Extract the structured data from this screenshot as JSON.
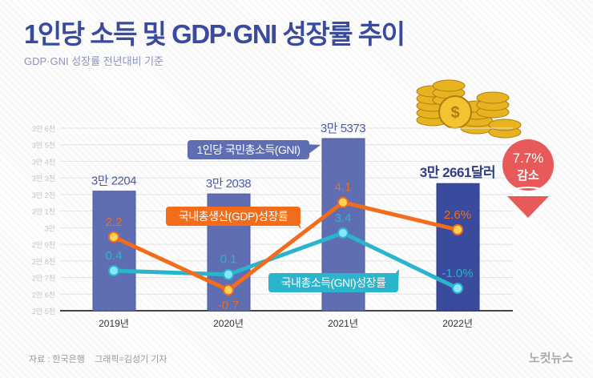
{
  "title": "1인당 소득 및 GDP·GNI 성장률 추이",
  "subtitle": "GDP·GNI 성장률 전년대비 기준",
  "source": "자료 : 한국은행    그래픽=김성기 기자",
  "logo_text": "노컷뉴스",
  "badge": {
    "line1": "7.7%",
    "line2": "감소",
    "color": "#e85a5a"
  },
  "colors": {
    "bar": "#5f6db3",
    "bar_highlight": "#3a4a9c",
    "gdp": "#f26c1c",
    "gni": "#2bb5cc",
    "gdp_point": "#fcd45a",
    "gni_point": "#85e8f8"
  },
  "chart_data": {
    "type": "bar+line",
    "categories": [
      "2019년",
      "2020년",
      "2021년",
      "2022년"
    ],
    "y_ticks": [
      "2만 5천",
      "2만 6천",
      "2만 7천",
      "2만 8천",
      "2만 9천",
      "3만",
      "3만 1천",
      "3만 2천",
      "3만 3천",
      "3만 4천",
      "3만 5천",
      "3만 6천"
    ],
    "ylim": [
      25000,
      36000
    ],
    "grid": true,
    "bars": {
      "name": "1인당 국민총소득(GNI)",
      "values": [
        32204,
        32038,
        35373,
        32661
      ],
      "labels": [
        "3만 2204",
        "3만 2038",
        "3만 5373",
        "3만 2661달러"
      ]
    },
    "series": [
      {
        "name": "국내총생산(GDP)성장률",
        "values": [
          2.2,
          -0.7,
          4.1,
          2.6
        ],
        "labels": [
          "2.2",
          "-0.7",
          "4.1",
          "2.6%"
        ]
      },
      {
        "name": "국내총소득(GNI)성장률",
        "values": [
          0.4,
          0.1,
          3.4,
          -1.0
        ],
        "labels": [
          "0.4",
          "0.1",
          "3.4",
          "-1.0%"
        ]
      }
    ]
  }
}
